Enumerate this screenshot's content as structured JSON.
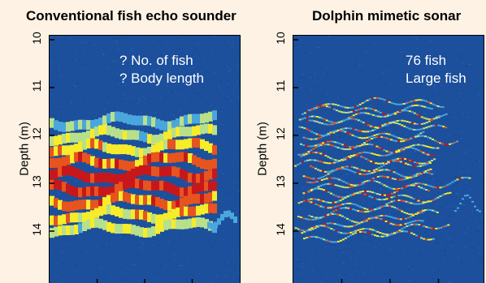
{
  "chart_data": [
    {
      "type": "heatmap",
      "title": "Conventional fish echo sounder",
      "ylabel": "Depth (m)",
      "xlabel": "",
      "ylim": [
        10,
        15
      ],
      "y_reversed": true,
      "yticks": [
        10,
        11,
        12,
        13,
        14
      ],
      "annotations": [
        "? No. of fish",
        "? Body length"
      ],
      "background_color": "#1c4f9c",
      "colors": {
        "low": "#4aa7dd",
        "mid": "#b8e08a",
        "high": "#f6ec2a",
        "very_high": "#e7541e",
        "peak": "#c8171b"
      },
      "school_depth_range_m": [
        11.5,
        14.0
      ]
    },
    {
      "type": "heatmap",
      "title": "Dolphin mimetic sonar",
      "ylabel": "Depth (m)",
      "xlabel": "",
      "ylim": [
        10,
        15
      ],
      "y_reversed": true,
      "yticks": [
        10,
        11,
        12,
        13,
        14
      ],
      "annotations": [
        "76 fish",
        "Large fish"
      ],
      "background_color": "#1c4f9c",
      "colors": {
        "low": "#4aa7dd",
        "mid": "#b8e08a",
        "high": "#f6ec2a",
        "very_high": "#e7541e",
        "peak": "#c8171b"
      },
      "school_depth_range_m": [
        11.3,
        14.2
      ]
    }
  ]
}
